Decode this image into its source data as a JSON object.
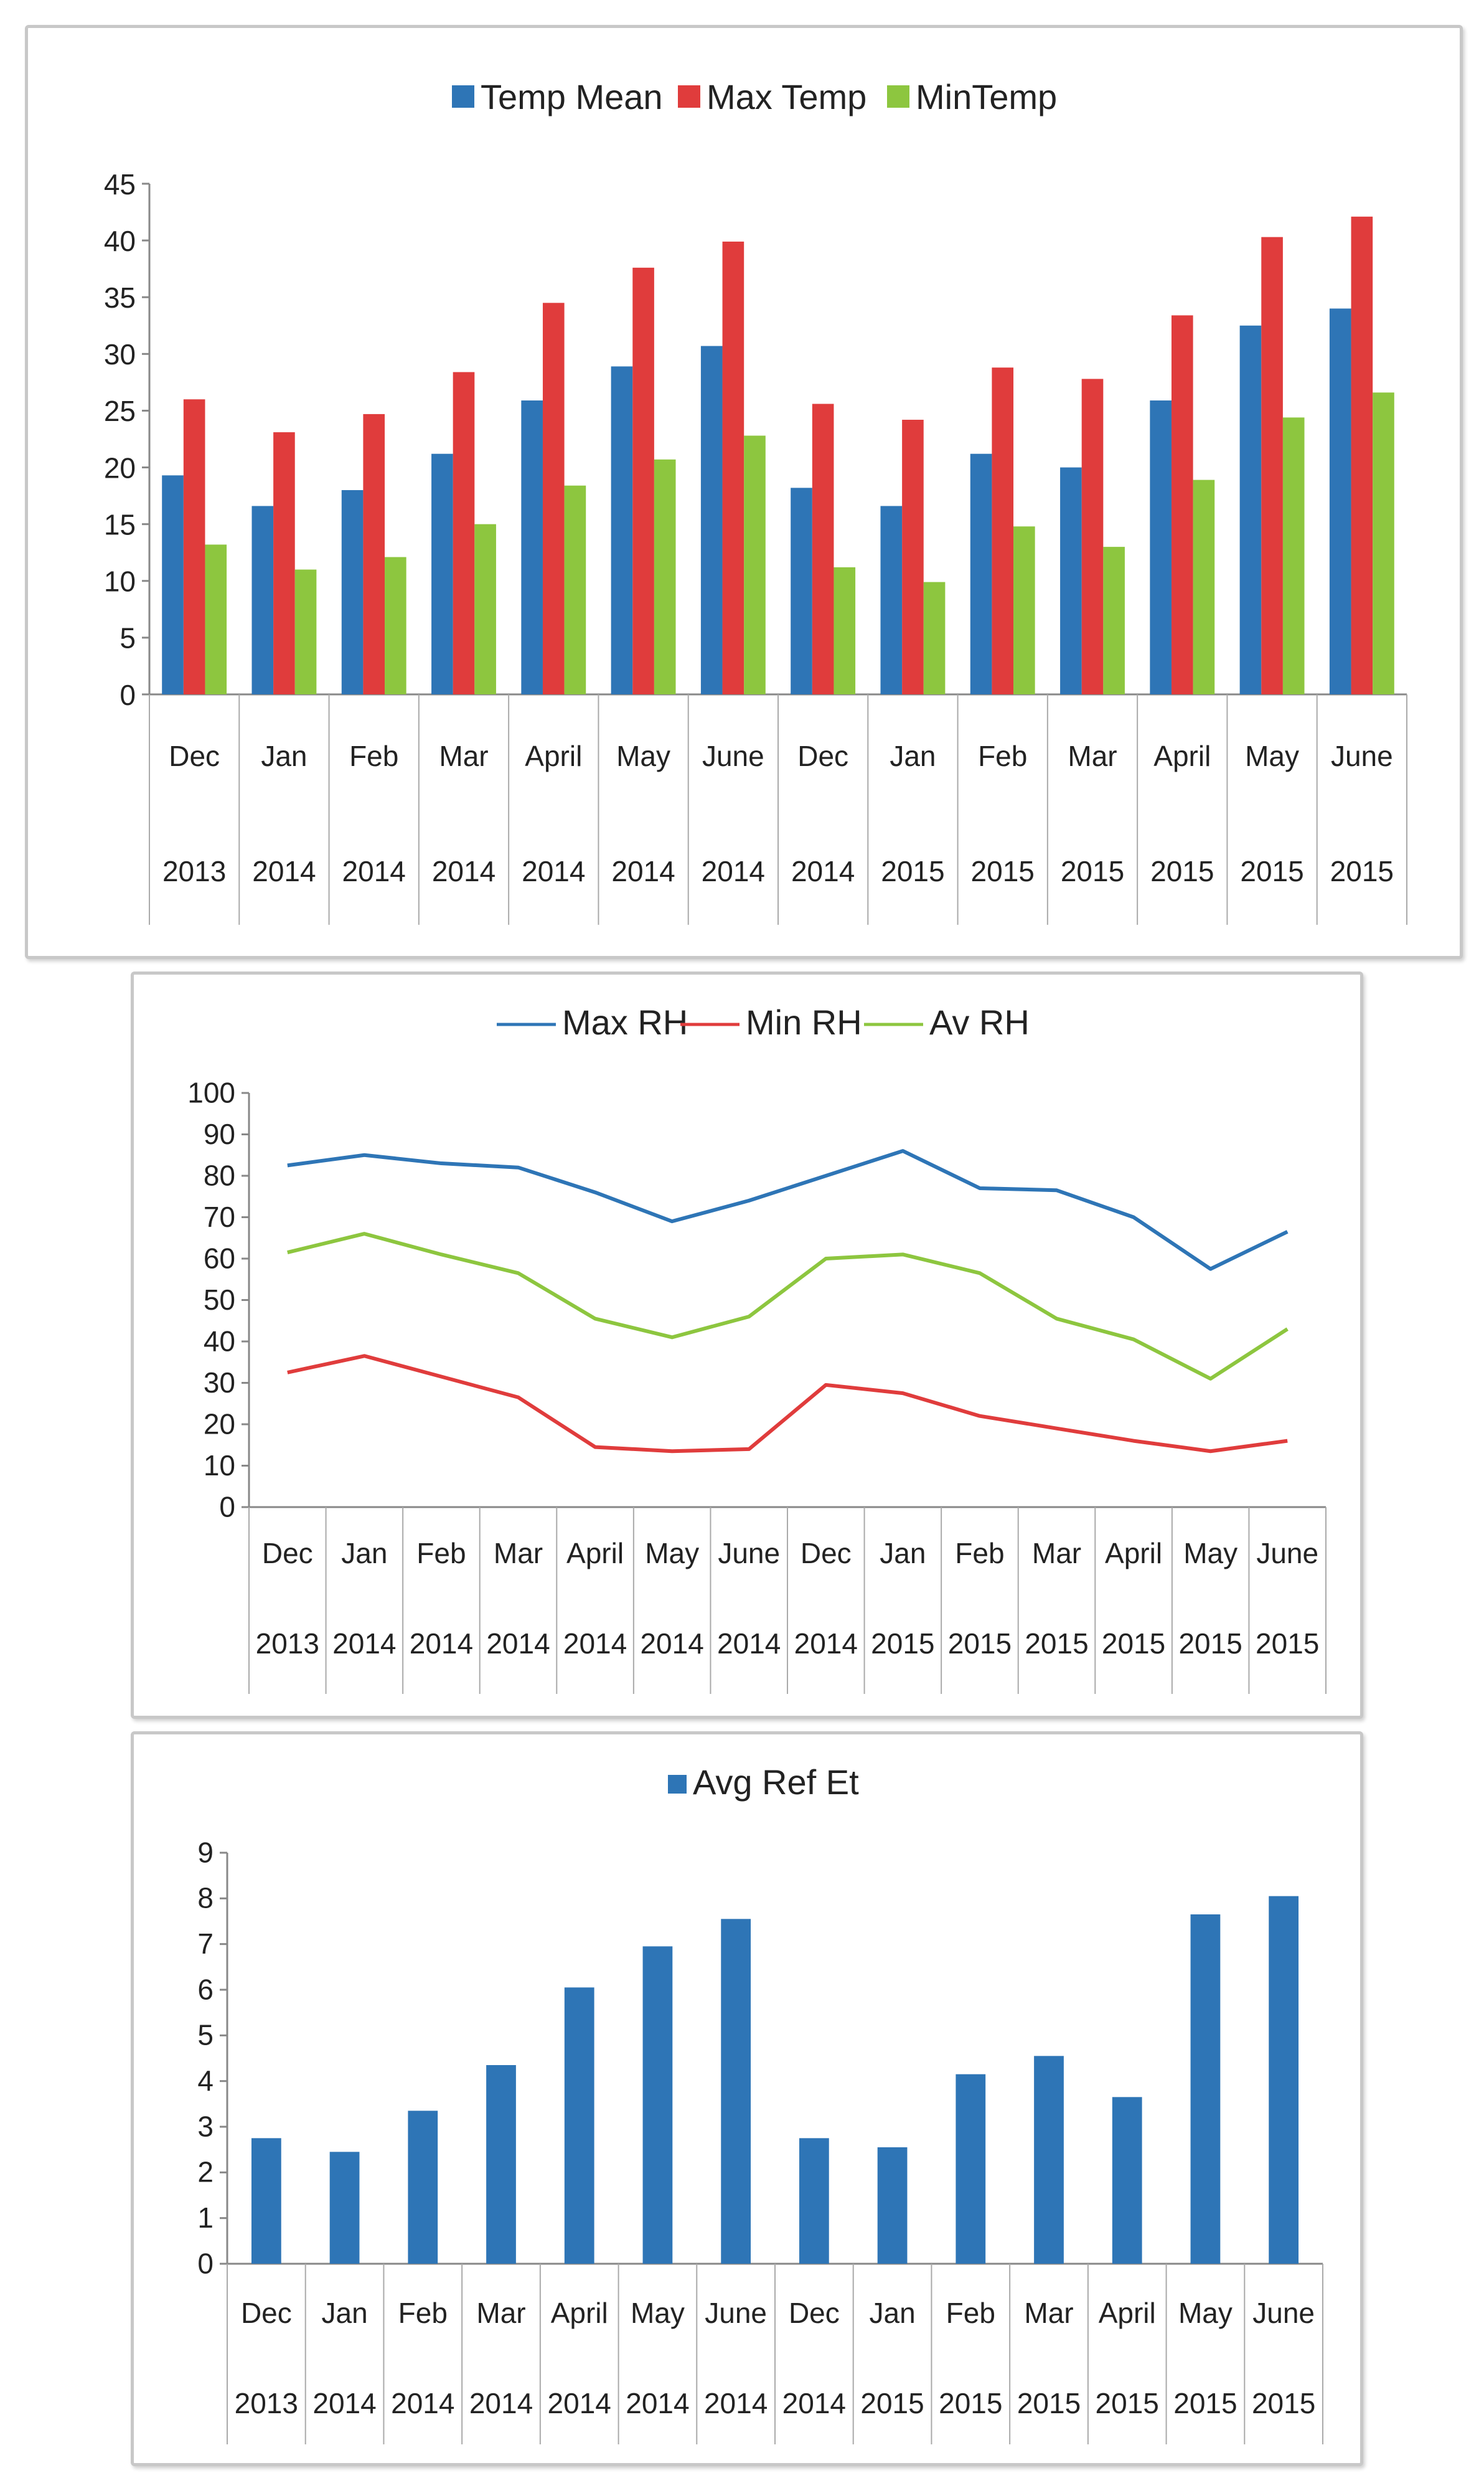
{
  "chart_data": [
    {
      "type": "bar",
      "title": "",
      "categories": [
        {
          "month": "Dec",
          "year": "2013"
        },
        {
          "month": "Jan",
          "year": "2014"
        },
        {
          "month": "Feb",
          "year": "2014"
        },
        {
          "month": "Mar",
          "year": "2014"
        },
        {
          "month": "April",
          "year": "2014"
        },
        {
          "month": "May",
          "year": "2014"
        },
        {
          "month": "June",
          "year": "2014"
        },
        {
          "month": "Dec",
          "year": "2014"
        },
        {
          "month": "Jan",
          "year": "2015"
        },
        {
          "month": "Feb",
          "year": "2015"
        },
        {
          "month": "Mar",
          "year": "2015"
        },
        {
          "month": "April",
          "year": "2015"
        },
        {
          "month": "May",
          "year": "2015"
        },
        {
          "month": "June",
          "year": "2015"
        }
      ],
      "series": [
        {
          "name": "Temp Mean",
          "color": "#2e75b6",
          "values": [
            19.3,
            16.6,
            18,
            21.2,
            25.9,
            28.9,
            30.7,
            18.2,
            16.6,
            21.2,
            20,
            25.9,
            32.5,
            34
          ]
        },
        {
          "name": "Max Temp",
          "color": "#e03c3c",
          "values": [
            26,
            23.1,
            24.7,
            28.4,
            34.5,
            37.6,
            39.9,
            25.6,
            24.2,
            28.8,
            27.8,
            33.4,
            40.3,
            42.1
          ]
        },
        {
          "name": "MinTemp",
          "color": "#8dc63f",
          "values": [
            13.2,
            11,
            12.1,
            15,
            18.4,
            20.7,
            22.8,
            11.2,
            9.9,
            14.8,
            13,
            18.9,
            24.4,
            26.6
          ]
        }
      ],
      "yticks": [
        0,
        5,
        10,
        15,
        20,
        25,
        30,
        35,
        40,
        45
      ],
      "ylim": [
        0,
        45
      ],
      "legend": "top"
    },
    {
      "type": "line",
      "title": "",
      "categories": [
        {
          "month": "Dec",
          "year": "2013"
        },
        {
          "month": "Jan",
          "year": "2014"
        },
        {
          "month": "Feb",
          "year": "2014"
        },
        {
          "month": "Mar",
          "year": "2014"
        },
        {
          "month": "April",
          "year": "2014"
        },
        {
          "month": "May",
          "year": "2014"
        },
        {
          "month": "June",
          "year": "2014"
        },
        {
          "month": "Dec",
          "year": "2014"
        },
        {
          "month": "Jan",
          "year": "2015"
        },
        {
          "month": "Feb",
          "year": "2015"
        },
        {
          "month": "Mar",
          "year": "2015"
        },
        {
          "month": "April",
          "year": "2015"
        },
        {
          "month": "May",
          "year": "2015"
        },
        {
          "month": "June",
          "year": "2015"
        }
      ],
      "series": [
        {
          "name": "Max RH",
          "color": "#2e75b6",
          "values": [
            82.5,
            85,
            83,
            82,
            76,
            69,
            74,
            80,
            86,
            77,
            76.5,
            70,
            57.5,
            66.5
          ]
        },
        {
          "name": "Min RH",
          "color": "#e03c3c",
          "values": [
            32.5,
            36.5,
            31.5,
            26.5,
            14.5,
            13.5,
            14,
            29.5,
            27.5,
            22,
            19,
            16,
            13.5,
            16
          ]
        },
        {
          "name": "Av RH",
          "color": "#8dc63f",
          "values": [
            61.5,
            66,
            61,
            56.5,
            45.5,
            41,
            46,
            60,
            61,
            56.5,
            45.5,
            40.5,
            31,
            43
          ]
        }
      ],
      "yticks": [
        0,
        10,
        20,
        30,
        40,
        50,
        60,
        70,
        80,
        90,
        100
      ],
      "ylim": [
        0,
        100
      ],
      "legend": "top"
    },
    {
      "type": "bar",
      "title": "",
      "categories": [
        {
          "month": "Dec",
          "year": "2013"
        },
        {
          "month": "Jan",
          "year": "2014"
        },
        {
          "month": "Feb",
          "year": "2014"
        },
        {
          "month": "Mar",
          "year": "2014"
        },
        {
          "month": "April",
          "year": "2014"
        },
        {
          "month": "May",
          "year": "2014"
        },
        {
          "month": "June",
          "year": "2014"
        },
        {
          "month": "Dec",
          "year": "2014"
        },
        {
          "month": "Jan",
          "year": "2015"
        },
        {
          "month": "Feb",
          "year": "2015"
        },
        {
          "month": "Mar",
          "year": "2015"
        },
        {
          "month": "April",
          "year": "2015"
        },
        {
          "month": "May",
          "year": "2015"
        },
        {
          "month": "June",
          "year": "2015"
        }
      ],
      "series": [
        {
          "name": "Avg Ref Et",
          "color": "#2e75b6",
          "values": [
            2.75,
            2.45,
            3.35,
            4.35,
            6.05,
            6.95,
            7.55,
            2.75,
            2.55,
            4.15,
            4.55,
            3.65,
            7.65,
            8.05
          ]
        }
      ],
      "yticks": [
        0,
        1,
        2,
        3,
        4,
        5,
        6,
        7,
        8,
        9
      ],
      "ylim": [
        0,
        9
      ],
      "legend": "top"
    }
  ]
}
